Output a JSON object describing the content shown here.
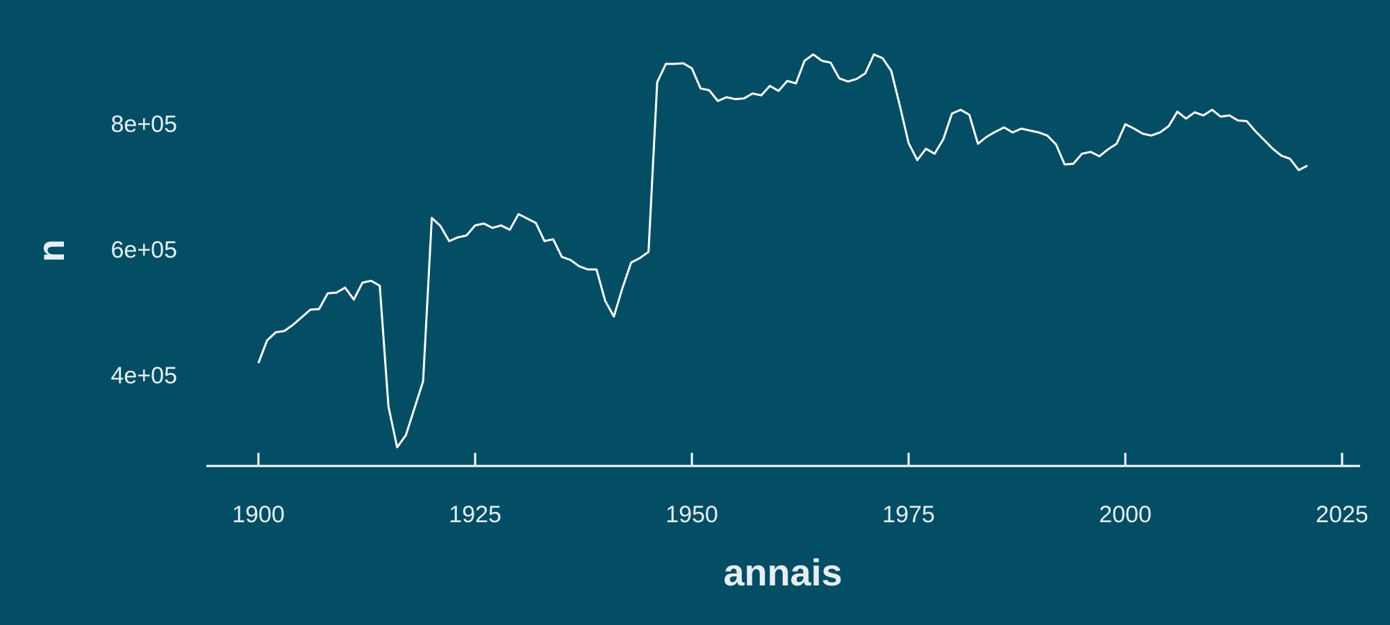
{
  "colors": {
    "background": "#034e64",
    "line": "#ffffff",
    "text": "#e6eef2"
  },
  "chart_data": {
    "type": "line",
    "title": "",
    "xlabel": "annais",
    "ylabel": "n",
    "xlim": [
      1894,
      2027
    ],
    "ylim": [
      280000,
      920000
    ],
    "x_ticks": [
      1900,
      1925,
      1950,
      1975,
      2000,
      2025
    ],
    "x_tick_labels": [
      "1900",
      "1925",
      "1950",
      "1975",
      "2000",
      "2025"
    ],
    "y_ticks": [
      400000,
      600000,
      800000
    ],
    "y_tick_labels": [
      "4e+05",
      "6e+05",
      "8e+05"
    ],
    "grid": false,
    "series": [
      {
        "x": [
          1900,
          1901,
          1902,
          1903,
          1904,
          1905,
          1906,
          1907,
          1908,
          1909,
          1910,
          1911,
          1912,
          1913,
          1914,
          1915,
          1916,
          1917,
          1918,
          1919,
          1920,
          1921,
          1922,
          1923,
          1924,
          1925,
          1926,
          1927,
          1928,
          1929,
          1930,
          1931,
          1932,
          1933,
          1934,
          1935,
          1936,
          1937,
          1938,
          1939,
          1940,
          1941,
          1942,
          1943,
          1944,
          1945,
          1946,
          1947,
          1948,
          1949,
          1950,
          1951,
          1952,
          1953,
          1954,
          1955,
          1956,
          1957,
          1958,
          1959,
          1960,
          1961,
          1962,
          1963,
          1964,
          1965,
          1966,
          1967,
          1968,
          1969,
          1970,
          1971,
          1972,
          1973,
          1974,
          1975,
          1976,
          1977,
          1978,
          1979,
          1980,
          1981,
          1982,
          1983,
          1984,
          1985,
          1986,
          1987,
          1988,
          1989,
          1990,
          1991,
          1992,
          1993,
          1994,
          1995,
          1996,
          1997,
          1998,
          1999,
          2000,
          2001,
          2002,
          2003,
          2004,
          2005,
          2006,
          2007,
          2008,
          2009,
          2010,
          2011,
          2012,
          2013,
          2014,
          2015,
          2016,
          2017,
          2018,
          2019,
          2020,
          2021
        ],
        "y": [
          419000,
          455000,
          468000,
          470000,
          480000,
          492000,
          504000,
          505000,
          530000,
          531000,
          539000,
          520000,
          547000,
          550000,
          542000,
          350000,
          285000,
          304000,
          347000,
          390000,
          650000,
          637000,
          613000,
          619000,
          622000,
          638000,
          641000,
          634000,
          638000,
          631000,
          656000,
          649000,
          642000,
          613000,
          616000,
          588000,
          583000,
          573000,
          568000,
          568000,
          518000,
          493000,
          539000,
          579000,
          586000,
          596000,
          866000,
          895000,
          895000,
          896000,
          888000,
          856000,
          853000,
          836000,
          842000,
          839000,
          840000,
          848000,
          845000,
          860000,
          852000,
          868000,
          864000,
          900000,
          910000,
          900000,
          897000,
          872000,
          867000,
          871000,
          880000,
          910000,
          904000,
          884000,
          828000,
          769000,
          742000,
          760000,
          752000,
          775000,
          816000,
          822000,
          814000,
          768000,
          779000,
          787000,
          794000,
          786000,
          792000,
          789000,
          786000,
          781000,
          767000,
          735000,
          736000,
          752000,
          755000,
          748000,
          759000,
          768000,
          799000,
          792000,
          784000,
          781000,
          786000,
          796000,
          819000,
          808000,
          818000,
          813000,
          822000,
          811000,
          813000,
          805000,
          804000,
          788000,
          774000,
          760000,
          749000,
          744000,
          726000,
          733000
        ]
      }
    ]
  }
}
